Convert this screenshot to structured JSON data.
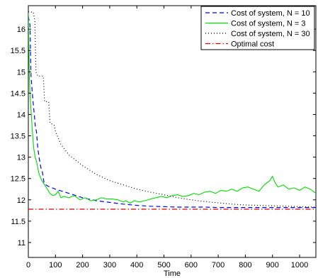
{
  "chart_data": {
    "type": "line",
    "title": "",
    "xlabel": "Time",
    "ylabel": "",
    "xlim": [
      0,
      1060
    ],
    "ylim": [
      10.65,
      16.55
    ],
    "xticks": [
      0,
      100,
      200,
      300,
      400,
      500,
      600,
      700,
      800,
      900,
      1000
    ],
    "yticks": [
      11,
      11.5,
      12,
      12.5,
      13,
      13.5,
      14,
      14.5,
      15,
      15.5,
      16
    ],
    "grid": false,
    "legend_position": "top-right",
    "series": [
      {
        "name": "Cost of system, N = 10",
        "color": "#0000ff",
        "style": "dashed",
        "points": [
          [
            0,
            16.3
          ],
          [
            6,
            16.1
          ],
          [
            10,
            14.9
          ],
          [
            16,
            14.4
          ],
          [
            22,
            14.0
          ],
          [
            26,
            13.7
          ],
          [
            30,
            13.6
          ],
          [
            35,
            13.2
          ],
          [
            42,
            12.9
          ],
          [
            48,
            12.7
          ],
          [
            52,
            12.65
          ],
          [
            58,
            12.4
          ],
          [
            65,
            12.35
          ],
          [
            72,
            12.32
          ],
          [
            80,
            12.3
          ],
          [
            100,
            12.25
          ],
          [
            150,
            12.15
          ],
          [
            200,
            12.05
          ],
          [
            250,
            11.98
          ],
          [
            300,
            11.94
          ],
          [
            350,
            11.9
          ],
          [
            400,
            11.87
          ],
          [
            450,
            11.85
          ],
          [
            500,
            11.84
          ],
          [
            550,
            11.83
          ],
          [
            600,
            11.83
          ],
          [
            650,
            11.83
          ],
          [
            700,
            11.82
          ],
          [
            750,
            11.82
          ],
          [
            800,
            11.82
          ],
          [
            850,
            11.82
          ],
          [
            900,
            11.82
          ],
          [
            950,
            11.82
          ],
          [
            1000,
            11.82
          ],
          [
            1060,
            11.82
          ]
        ]
      },
      {
        "name": "Cost of system, N = 3",
        "color": "#00dd00",
        "style": "solid",
        "points": [
          [
            0,
            16.4
          ],
          [
            2,
            15.6
          ],
          [
            4,
            14.9
          ],
          [
            6,
            14.5
          ],
          [
            10,
            14.1
          ],
          [
            15,
            13.6
          ],
          [
            20,
            13.2
          ],
          [
            25,
            13.0
          ],
          [
            30,
            12.9
          ],
          [
            35,
            12.75
          ],
          [
            40,
            12.6
          ],
          [
            50,
            12.45
          ],
          [
            60,
            12.35
          ],
          [
            70,
            12.25
          ],
          [
            80,
            12.15
          ],
          [
            90,
            12.1
          ],
          [
            100,
            12.12
          ],
          [
            110,
            12.2
          ],
          [
            120,
            12.05
          ],
          [
            130,
            12.08
          ],
          [
            150,
            12.05
          ],
          [
            170,
            12.1
          ],
          [
            190,
            12.0
          ],
          [
            210,
            12.05
          ],
          [
            230,
            11.98
          ],
          [
            250,
            12.0
          ],
          [
            270,
            12.05
          ],
          [
            290,
            12.02
          ],
          [
            310,
            12.02
          ],
          [
            330,
            12.0
          ],
          [
            350,
            11.95
          ],
          [
            360,
            11.98
          ],
          [
            375,
            11.92
          ],
          [
            390,
            11.98
          ],
          [
            410,
            11.95
          ],
          [
            430,
            11.98
          ],
          [
            450,
            12.02
          ],
          [
            470,
            12.05
          ],
          [
            490,
            12.08
          ],
          [
            510,
            12.05
          ],
          [
            530,
            12.1
          ],
          [
            550,
            12.12
          ],
          [
            570,
            12.08
          ],
          [
            590,
            12.1
          ],
          [
            610,
            12.15
          ],
          [
            630,
            12.12
          ],
          [
            650,
            12.18
          ],
          [
            670,
            12.2
          ],
          [
            690,
            12.15
          ],
          [
            710,
            12.22
          ],
          [
            730,
            12.2
          ],
          [
            750,
            12.25
          ],
          [
            770,
            12.2
          ],
          [
            790,
            12.28
          ],
          [
            810,
            12.3
          ],
          [
            830,
            12.25
          ],
          [
            850,
            12.2
          ],
          [
            870,
            12.35
          ],
          [
            890,
            12.45
          ],
          [
            900,
            12.55
          ],
          [
            910,
            12.4
          ],
          [
            920,
            12.3
          ],
          [
            940,
            12.35
          ],
          [
            960,
            12.25
          ],
          [
            980,
            12.28
          ],
          [
            1000,
            12.22
          ],
          [
            1020,
            12.3
          ],
          [
            1040,
            12.25
          ],
          [
            1060,
            12.15
          ]
        ]
      },
      {
        "name": "Cost of system, N = 30",
        "color": "#000000",
        "style": "dotted",
        "points": [
          [
            0,
            16.4
          ],
          [
            18,
            16.4
          ],
          [
            24,
            16.2
          ],
          [
            28,
            15.0
          ],
          [
            35,
            14.9
          ],
          [
            55,
            14.9
          ],
          [
            60,
            14.3
          ],
          [
            75,
            14.3
          ],
          [
            80,
            13.8
          ],
          [
            95,
            13.75
          ],
          [
            100,
            13.6
          ],
          [
            120,
            13.3
          ],
          [
            150,
            13.05
          ],
          [
            200,
            12.8
          ],
          [
            250,
            12.6
          ],
          [
            300,
            12.45
          ],
          [
            350,
            12.35
          ],
          [
            400,
            12.25
          ],
          [
            450,
            12.18
          ],
          [
            500,
            12.12
          ],
          [
            550,
            12.05
          ],
          [
            600,
            12.0
          ],
          [
            650,
            11.96
          ],
          [
            700,
            11.93
          ],
          [
            750,
            11.9
          ],
          [
            800,
            11.88
          ],
          [
            850,
            11.87
          ],
          [
            900,
            11.86
          ],
          [
            950,
            11.85
          ],
          [
            1000,
            11.84
          ],
          [
            1060,
            11.83
          ]
        ]
      },
      {
        "name": "Optimal cost",
        "color": "#dd0000",
        "style": "dashdot",
        "points": [
          [
            0,
            11.78
          ],
          [
            1060,
            11.78
          ]
        ]
      }
    ]
  }
}
